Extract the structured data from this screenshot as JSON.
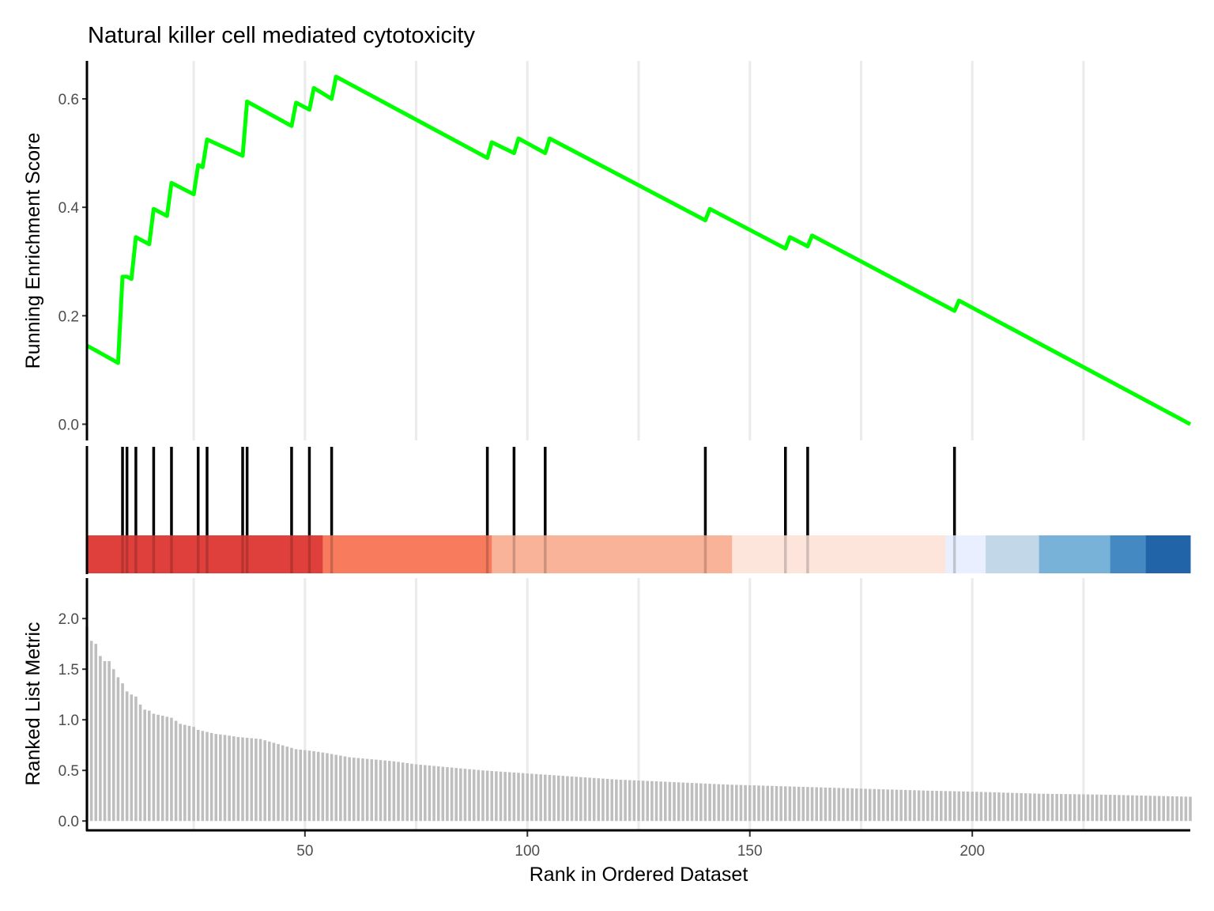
{
  "chart_data": {
    "type": "line",
    "title": "Natural killer cell mediated cytotoxicity",
    "xlabel": "Rank in Ordered Dataset",
    "xlim": [
      1,
      249
    ],
    "xticks": [
      50,
      100,
      150,
      200
    ],
    "grid": "vertical major gridlines",
    "panels": [
      {
        "name": "running-es",
        "ylabel": "Running Enrichment Score",
        "ylim": [
          -0.03,
          0.67
        ],
        "yticks": [
          0.0,
          0.2,
          0.4,
          0.6
        ],
        "ytick_labels": [
          "0.0",
          "0.2",
          "0.4",
          "0.6"
        ],
        "line_color": "#00ff00",
        "points": [
          [
            1,
            0.145
          ],
          [
            8,
            0.113
          ],
          [
            9,
            0.272
          ],
          [
            10,
            0.272
          ],
          [
            11,
            0.268
          ],
          [
            12,
            0.345
          ],
          [
            15,
            0.332
          ],
          [
            16,
            0.397
          ],
          [
            19,
            0.384
          ],
          [
            20,
            0.445
          ],
          [
            25,
            0.424
          ],
          [
            26,
            0.478
          ],
          [
            27,
            0.474
          ],
          [
            28,
            0.525
          ],
          [
            36,
            0.495
          ],
          [
            37,
            0.595
          ],
          [
            47,
            0.55
          ],
          [
            48,
            0.593
          ],
          [
            51,
            0.58
          ],
          [
            52,
            0.62
          ],
          [
            56,
            0.6
          ],
          [
            57,
            0.641
          ],
          [
            91,
            0.491
          ],
          [
            92,
            0.52
          ],
          [
            97,
            0.5
          ],
          [
            98,
            0.527
          ],
          [
            104,
            0.5
          ],
          [
            105,
            0.527
          ],
          [
            140,
            0.376
          ],
          [
            141,
            0.397
          ],
          [
            158,
            0.324
          ],
          [
            159,
            0.345
          ],
          [
            163,
            0.328
          ],
          [
            164,
            0.348
          ],
          [
            196,
            0.209
          ],
          [
            197,
            0.228
          ],
          [
            249,
            0.0
          ]
        ]
      },
      {
        "name": "gene-hits",
        "hits": [
          9,
          10,
          12,
          16,
          20,
          26,
          28,
          36,
          37,
          47,
          51,
          56,
          91,
          97,
          104,
          140,
          158,
          163,
          196
        ],
        "color_bands": [
          {
            "x0": 1,
            "x1": 54,
            "color": "#e0403b"
          },
          {
            "x0": 54,
            "x1": 92,
            "color": "#f87b5e"
          },
          {
            "x0": 92,
            "x1": 146,
            "color": "#f9b399"
          },
          {
            "x0": 146,
            "x1": 194,
            "color": "#fde5db"
          },
          {
            "x0": 194,
            "x1": 203,
            "color": "#eaefff"
          },
          {
            "x0": 203,
            "x1": 215,
            "color": "#c2d8e8"
          },
          {
            "x0": 215,
            "x1": 231,
            "color": "#79b2d8"
          },
          {
            "x0": 231,
            "x1": 239,
            "color": "#4589c3"
          },
          {
            "x0": 239,
            "x1": 249,
            "color": "#2165a8"
          }
        ]
      },
      {
        "name": "ranked-metric",
        "ylabel": "Ranked List Metric",
        "ylim": [
          -0.1,
          2.4
        ],
        "yticks": [
          0.0,
          0.5,
          1.0,
          1.5,
          2.0
        ],
        "ytick_labels": [
          "0.0",
          "0.5",
          "1.0",
          "1.5",
          "2.0"
        ],
        "bar_color": "#bebebe",
        "curve_points": [
          [
            1,
            1.92
          ],
          [
            2,
            1.78
          ],
          [
            3,
            1.75
          ],
          [
            4,
            1.63
          ],
          [
            5,
            1.58
          ],
          [
            6,
            1.58
          ],
          [
            7,
            1.5
          ],
          [
            8,
            1.42
          ],
          [
            9,
            1.36
          ],
          [
            10,
            1.28
          ],
          [
            11,
            1.25
          ],
          [
            12,
            1.23
          ],
          [
            13,
            1.15
          ],
          [
            14,
            1.1
          ],
          [
            15,
            1.09
          ],
          [
            16,
            1.06
          ],
          [
            18,
            1.04
          ],
          [
            20,
            1.02
          ],
          [
            22,
            0.96
          ],
          [
            25,
            0.93
          ],
          [
            26,
            0.9
          ],
          [
            28,
            0.88
          ],
          [
            30,
            0.86
          ],
          [
            32,
            0.85
          ],
          [
            35,
            0.83
          ],
          [
            40,
            0.81
          ],
          [
            44,
            0.76
          ],
          [
            48,
            0.71
          ],
          [
            52,
            0.69
          ],
          [
            55,
            0.67
          ],
          [
            60,
            0.63
          ],
          [
            65,
            0.61
          ],
          [
            70,
            0.59
          ],
          [
            75,
            0.56
          ],
          [
            80,
            0.54
          ],
          [
            85,
            0.52
          ],
          [
            90,
            0.5
          ],
          [
            100,
            0.47
          ],
          [
            110,
            0.44
          ],
          [
            120,
            0.41
          ],
          [
            130,
            0.39
          ],
          [
            145,
            0.36
          ],
          [
            160,
            0.34
          ],
          [
            175,
            0.32
          ],
          [
            190,
            0.3
          ],
          [
            200,
            0.29
          ],
          [
            215,
            0.27
          ],
          [
            230,
            0.26
          ],
          [
            249,
            0.24
          ]
        ]
      }
    ]
  }
}
